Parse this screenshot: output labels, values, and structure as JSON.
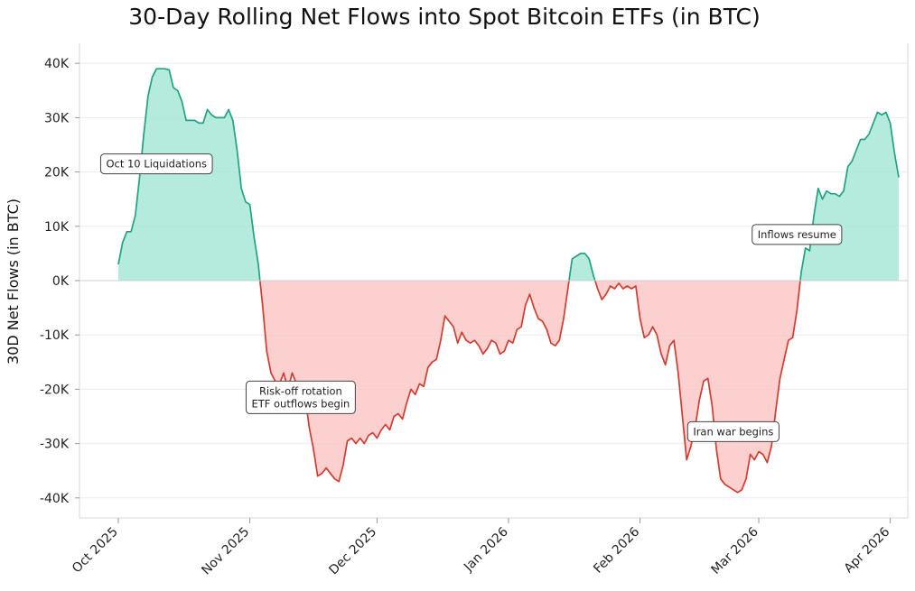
{
  "chart_data": {
    "type": "area",
    "title": "30-Day Rolling Net Flows into Spot Bitcoin ETFs (in BTC)",
    "ylabel": "30D Net Flows (in BTC)",
    "xlabel": "",
    "ylim": [
      -43000,
      43000
    ],
    "xlim": [
      "2025-10-01",
      "2026-04-03"
    ],
    "grid": true,
    "colors": {
      "positive_line": "#21a383",
      "positive_fill": "#a8e8d6",
      "negative_line": "#d43b30",
      "negative_fill": "#fbc8c5"
    },
    "y_ticks": [
      {
        "value": 40000,
        "label": "40K"
      },
      {
        "value": 30000,
        "label": "30K"
      },
      {
        "value": 20000,
        "label": "20K"
      },
      {
        "value": 10000,
        "label": "10K"
      },
      {
        "value": 0,
        "label": "0K"
      },
      {
        "value": -10000,
        "label": "-10K"
      },
      {
        "value": -20000,
        "label": "-20K"
      },
      {
        "value": -30000,
        "label": "-30K"
      },
      {
        "value": -40000,
        "label": "-40K"
      }
    ],
    "x_ticks": [
      {
        "date": "2025-10-01",
        "label": "Oct 2025"
      },
      {
        "date": "2025-11-01",
        "label": "Nov 2025"
      },
      {
        "date": "2025-12-01",
        "label": "Dec 2025"
      },
      {
        "date": "2026-01-01",
        "label": "Jan 2026"
      },
      {
        "date": "2026-02-01",
        "label": "Feb 2026"
      },
      {
        "date": "2026-03-01",
        "label": "Mar 2026"
      },
      {
        "date": "2026-04-01",
        "label": "Apr 2026"
      }
    ],
    "series": [
      {
        "points": [
          [
            "2025-10-01",
            3000
          ],
          [
            "2025-10-02",
            7000
          ],
          [
            "2025-10-03",
            9000
          ],
          [
            "2025-10-04",
            9000
          ],
          [
            "2025-10-05",
            12000
          ],
          [
            "2025-10-06",
            19000
          ],
          [
            "2025-10-07",
            27000
          ],
          [
            "2025-10-08",
            34000
          ],
          [
            "2025-10-09",
            37500
          ],
          [
            "2025-10-10",
            39000
          ],
          [
            "2025-10-12",
            39000
          ],
          [
            "2025-10-13",
            38800
          ],
          [
            "2025-10-14",
            35500
          ],
          [
            "2025-10-15",
            35000
          ],
          [
            "2025-10-16",
            33000
          ],
          [
            "2025-10-17",
            29500
          ],
          [
            "2025-10-19",
            29500
          ],
          [
            "2025-10-20",
            29000
          ],
          [
            "2025-10-21",
            29000
          ],
          [
            "2025-10-22",
            31500
          ],
          [
            "2025-10-23",
            30500
          ],
          [
            "2025-10-24",
            30000
          ],
          [
            "2025-10-26",
            30000
          ],
          [
            "2025-10-27",
            31500
          ],
          [
            "2025-10-28",
            29500
          ],
          [
            "2025-10-29",
            24000
          ],
          [
            "2025-10-30",
            17000
          ],
          [
            "2025-10-31",
            14500
          ],
          [
            "2025-11-01",
            14000
          ],
          [
            "2025-11-02",
            8000
          ],
          [
            "2025-11-03",
            3000
          ],
          [
            "2025-11-04",
            -4500
          ],
          [
            "2025-11-05",
            -13000
          ],
          [
            "2025-11-06",
            -17000
          ],
          [
            "2025-11-07",
            -18500
          ],
          [
            "2025-11-08",
            -19000
          ],
          [
            "2025-11-09",
            -17000
          ],
          [
            "2025-11-10",
            -20000
          ],
          [
            "2025-11-11",
            -17000
          ],
          [
            "2025-11-12",
            -19000
          ],
          [
            "2025-11-14",
            -21000
          ],
          [
            "2025-11-15",
            -27000
          ],
          [
            "2025-11-16",
            -31000
          ],
          [
            "2025-11-17",
            -36000
          ],
          [
            "2025-11-18",
            -35500
          ],
          [
            "2025-11-19",
            -34500
          ],
          [
            "2025-11-20",
            -35500
          ],
          [
            "2025-11-21",
            -36500
          ],
          [
            "2025-11-22",
            -37000
          ],
          [
            "2025-11-23",
            -34000
          ],
          [
            "2025-11-24",
            -29500
          ],
          [
            "2025-11-25",
            -29000
          ],
          [
            "2025-11-26",
            -30000
          ],
          [
            "2025-11-27",
            -29000
          ],
          [
            "2025-11-28",
            -30000
          ],
          [
            "2025-11-29",
            -28500
          ],
          [
            "2025-11-30",
            -28000
          ],
          [
            "2025-12-01",
            -29000
          ],
          [
            "2025-12-02",
            -27500
          ],
          [
            "2025-12-03",
            -26500
          ],
          [
            "2025-12-04",
            -27500
          ],
          [
            "2025-12-05",
            -25000
          ],
          [
            "2025-12-06",
            -24500
          ],
          [
            "2025-12-07",
            -25500
          ],
          [
            "2025-12-08",
            -22500
          ],
          [
            "2025-12-09",
            -20000
          ],
          [
            "2025-12-10",
            -21000
          ],
          [
            "2025-12-11",
            -19000
          ],
          [
            "2025-12-12",
            -19500
          ],
          [
            "2025-12-13",
            -16000
          ],
          [
            "2025-12-14",
            -15000
          ],
          [
            "2025-12-15",
            -14500
          ],
          [
            "2025-12-16",
            -11000
          ],
          [
            "2025-12-17",
            -6500
          ],
          [
            "2025-12-18",
            -7500
          ],
          [
            "2025-12-19",
            -8500
          ],
          [
            "2025-12-20",
            -11500
          ],
          [
            "2025-12-21",
            -9500
          ],
          [
            "2025-12-22",
            -11000
          ],
          [
            "2025-12-23",
            -11500
          ],
          [
            "2025-12-24",
            -11000
          ],
          [
            "2025-12-25",
            -12000
          ],
          [
            "2025-12-26",
            -13500
          ],
          [
            "2025-12-27",
            -12500
          ],
          [
            "2025-12-28",
            -11000
          ],
          [
            "2025-12-29",
            -11500
          ],
          [
            "2025-12-30",
            -13500
          ],
          [
            "2025-12-31",
            -13000
          ],
          [
            "2026-01-01",
            -11000
          ],
          [
            "2026-01-02",
            -11500
          ],
          [
            "2026-01-03",
            -9000
          ],
          [
            "2026-01-04",
            -8500
          ],
          [
            "2026-01-05",
            -4500
          ],
          [
            "2026-01-06",
            -2500
          ],
          [
            "2026-01-07",
            -5000
          ],
          [
            "2026-01-08",
            -7000
          ],
          [
            "2026-01-09",
            -7500
          ],
          [
            "2026-01-10",
            -9000
          ],
          [
            "2026-01-11",
            -11500
          ],
          [
            "2026-01-12",
            -12000
          ],
          [
            "2026-01-13",
            -11000
          ],
          [
            "2026-01-14",
            -7000
          ],
          [
            "2026-01-15",
            -1500
          ],
          [
            "2026-01-16",
            4000
          ],
          [
            "2026-01-17",
            4500
          ],
          [
            "2026-01-18",
            5000
          ],
          [
            "2026-01-19",
            5000
          ],
          [
            "2026-01-20",
            4000
          ],
          [
            "2026-01-21",
            1000
          ],
          [
            "2026-01-22",
            -1500
          ],
          [
            "2026-01-23",
            -3500
          ],
          [
            "2026-01-24",
            -2500
          ],
          [
            "2026-01-25",
            -1000
          ],
          [
            "2026-01-26",
            -1500
          ],
          [
            "2026-01-27",
            -500
          ],
          [
            "2026-01-28",
            -1500
          ],
          [
            "2026-01-29",
            -1000
          ],
          [
            "2026-01-30",
            -1500
          ],
          [
            "2026-01-31",
            -1000
          ],
          [
            "2026-02-01",
            -7000
          ],
          [
            "2026-02-02",
            -10500
          ],
          [
            "2026-02-03",
            -10000
          ],
          [
            "2026-02-04",
            -8500
          ],
          [
            "2026-02-05",
            -10000
          ],
          [
            "2026-02-06",
            -13500
          ],
          [
            "2026-02-07",
            -15500
          ],
          [
            "2026-02-08",
            -12000
          ],
          [
            "2026-02-09",
            -11000
          ],
          [
            "2026-02-10",
            -17000
          ],
          [
            "2026-02-11",
            -25000
          ],
          [
            "2026-02-12",
            -33000
          ],
          [
            "2026-02-13",
            -30500
          ],
          [
            "2026-02-14",
            -27000
          ],
          [
            "2026-02-15",
            -22000
          ],
          [
            "2026-02-16",
            -18500
          ],
          [
            "2026-02-17",
            -18000
          ],
          [
            "2026-02-18",
            -23000
          ],
          [
            "2026-02-19",
            -31000
          ],
          [
            "2026-02-20",
            -36500
          ],
          [
            "2026-02-21",
            -37500
          ],
          [
            "2026-02-22",
            -38000
          ],
          [
            "2026-02-23",
            -38500
          ],
          [
            "2026-02-24",
            -39000
          ],
          [
            "2026-02-25",
            -38500
          ],
          [
            "2026-02-26",
            -36500
          ],
          [
            "2026-02-27",
            -32000
          ],
          [
            "2026-02-28",
            -33000
          ],
          [
            "2026-03-01",
            -31500
          ],
          [
            "2026-03-02",
            -32000
          ],
          [
            "2026-03-03",
            -33500
          ],
          [
            "2026-03-04",
            -30500
          ],
          [
            "2026-03-05",
            -24000
          ],
          [
            "2026-03-06",
            -18000
          ],
          [
            "2026-03-07",
            -14500
          ],
          [
            "2026-03-08",
            -11000
          ],
          [
            "2026-03-09",
            -10500
          ],
          [
            "2026-03-10",
            -5500
          ],
          [
            "2026-03-11",
            1500
          ],
          [
            "2026-03-12",
            6000
          ],
          [
            "2026-03-13",
            5500
          ],
          [
            "2026-03-14",
            12000
          ],
          [
            "2026-03-15",
            17000
          ],
          [
            "2026-03-16",
            15000
          ],
          [
            "2026-03-17",
            16500
          ],
          [
            "2026-03-18",
            16000
          ],
          [
            "2026-03-19",
            16000
          ],
          [
            "2026-03-20",
            15500
          ],
          [
            "2026-03-21",
            16500
          ],
          [
            "2026-03-22",
            21000
          ],
          [
            "2026-03-23",
            22000
          ],
          [
            "2026-03-24",
            24000
          ],
          [
            "2026-03-25",
            26000
          ],
          [
            "2026-03-26",
            26000
          ],
          [
            "2026-03-27",
            27000
          ],
          [
            "2026-03-28",
            29000
          ],
          [
            "2026-03-29",
            31000
          ],
          [
            "2026-03-30",
            30500
          ],
          [
            "2026-03-31",
            31000
          ],
          [
            "2026-04-01",
            29000
          ],
          [
            "2026-04-02",
            23500
          ],
          [
            "2026-04-03",
            19000
          ]
        ]
      }
    ],
    "annotations": [
      {
        "text": [
          "Oct 10 Liquidations"
        ],
        "date": "2025-10-10",
        "value": 21500
      },
      {
        "text": [
          "Risk-off rotation",
          "ETF outflows begin"
        ],
        "date": "2025-11-13",
        "value": -21500
      },
      {
        "text": [
          "Iran war begins"
        ],
        "date": "2026-02-23",
        "value": -27800
      },
      {
        "text": [
          "Inflows resume"
        ],
        "date": "2026-03-10",
        "value": 8500
      }
    ]
  }
}
